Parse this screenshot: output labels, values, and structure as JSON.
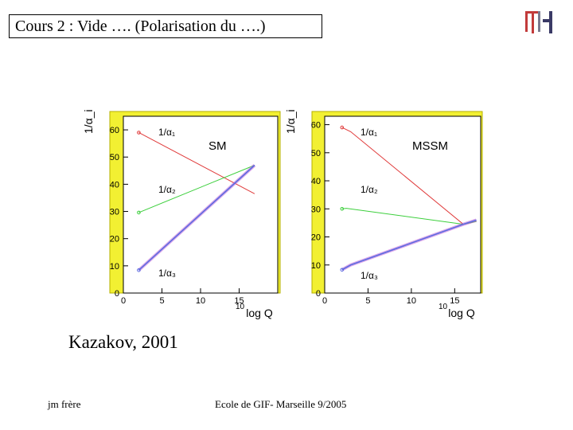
{
  "slide": {
    "title": "Cours 2 : Vide …. (Polarisation du ….)",
    "caption": "Kazakov, 2001",
    "footer_left": "jm frère",
    "footer_center": "Ecole de GIF- Marseille 9/2005"
  },
  "colors": {
    "frame_yellow": "#f2f032",
    "alpha1_red": "#e03a3a",
    "alpha2_green": "#3ccf3c",
    "alpha3_blue": "#5b6be0",
    "alpha3_violet": "#c060d8"
  },
  "chart_data": [
    {
      "type": "line",
      "title": "SM",
      "ylabel": "1/α_i",
      "xlabel": "log Q",
      "xlabel_superscript": "10",
      "xlim": [
        0,
        20
      ],
      "ylim": [
        0,
        65
      ],
      "xticks": [
        0,
        5,
        10,
        15
      ],
      "yticks": [
        0,
        10,
        20,
        30,
        40,
        50,
        60
      ],
      "series": [
        {
          "name": "1/α₁",
          "color": "#e03a3a",
          "x": [
            2,
            17
          ],
          "y": [
            59,
            36.5
          ]
        },
        {
          "name": "1/α₂",
          "color": "#3ccf3c",
          "x": [
            2,
            17
          ],
          "y": [
            29.6,
            47
          ]
        },
        {
          "name": "1/α₃",
          "color": "#5b6be0",
          "x": [
            2,
            17
          ],
          "y": [
            8.4,
            47
          ]
        }
      ]
    },
    {
      "type": "line",
      "title": "MSSM",
      "ylabel": "1/α_i",
      "xlabel": "log Q",
      "xlabel_superscript": "10",
      "xlim": [
        0,
        18
      ],
      "ylim": [
        0,
        63
      ],
      "xticks": [
        0,
        5,
        10,
        15
      ],
      "yticks": [
        0,
        10,
        20,
        30,
        40,
        50,
        60
      ],
      "series": [
        {
          "name": "1/α₁",
          "color": "#e03a3a",
          "x": [
            2,
            3,
            16,
            17.5
          ],
          "y": [
            59,
            57.5,
            24.5,
            25.5
          ]
        },
        {
          "name": "1/α₂",
          "color": "#3ccf3c",
          "x": [
            2,
            2.5,
            16,
            17.5
          ],
          "y": [
            30,
            30.2,
            24.5,
            25.5
          ]
        },
        {
          "name": "1/α₃",
          "color": "#5b6be0",
          "x": [
            2,
            3,
            16,
            17.5
          ],
          "y": [
            8.3,
            10,
            24.5,
            26
          ]
        }
      ]
    }
  ]
}
